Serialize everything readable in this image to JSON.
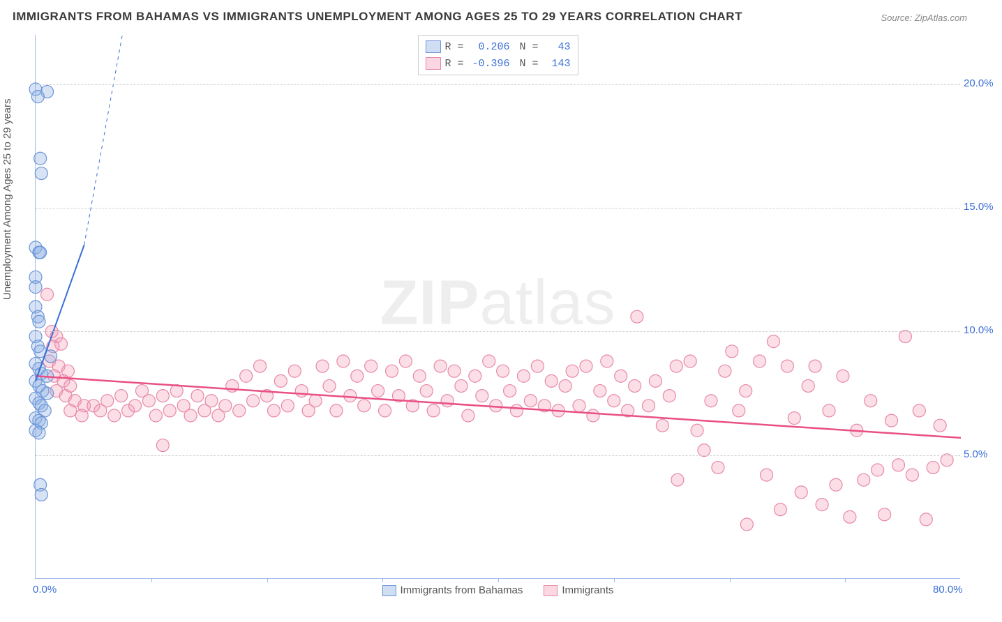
{
  "title": "IMMIGRANTS FROM BAHAMAS VS IMMIGRANTS UNEMPLOYMENT AMONG AGES 25 TO 29 YEARS CORRELATION CHART",
  "source": "Source: ZipAtlas.com",
  "ylabel": "Unemployment Among Ages 25 to 29 years",
  "watermark_zip": "ZIP",
  "watermark_atlas": "atlas",
  "chart": {
    "type": "scatter",
    "xlim": [
      0,
      80
    ],
    "ylim": [
      0,
      22
    ],
    "x_ticks_labels": [
      {
        "pos": 0,
        "label": "0.0%"
      },
      {
        "pos": 80,
        "label": "80.0%"
      }
    ],
    "x_ticks_minor": [
      10,
      20,
      30,
      40,
      50,
      60,
      70
    ],
    "y_ticks": [
      {
        "pos": 5,
        "label": "5.0%"
      },
      {
        "pos": 10,
        "label": "10.0%"
      },
      {
        "pos": 15,
        "label": "15.0%"
      },
      {
        "pos": 20,
        "label": "20.0%"
      }
    ],
    "grid_color": "#d0d0d0",
    "background_color": "#ffffff",
    "axis_color": "#9bb8e8",
    "tick_label_color": "#3b6fd6",
    "point_radius": 9,
    "point_stroke_width": 1.2,
    "series": {
      "blue": {
        "label": "Immigrants from Bahamas",
        "fill": "rgba(140,175,225,0.35)",
        "stroke": "#6a95d8",
        "R": "0.206",
        "N": "43",
        "trend": {
          "x1": 0,
          "y1": 8.0,
          "x2": 7.5,
          "y2": 22,
          "solid_until_x": 4.2,
          "solid_until_y": 13.5,
          "color": "#3b6fd6",
          "width": 2
        },
        "points": [
          [
            0.0,
            19.8
          ],
          [
            1.0,
            19.7
          ],
          [
            0.2,
            19.5
          ],
          [
            0.4,
            17.0
          ],
          [
            0.5,
            16.4
          ],
          [
            0.0,
            13.4
          ],
          [
            0.3,
            13.2
          ],
          [
            0.4,
            13.2
          ],
          [
            0.0,
            12.2
          ],
          [
            0.0,
            11.8
          ],
          [
            0.0,
            11.0
          ],
          [
            0.2,
            10.6
          ],
          [
            0.3,
            10.4
          ],
          [
            0.0,
            9.8
          ],
          [
            0.2,
            9.4
          ],
          [
            0.4,
            9.2
          ],
          [
            1.3,
            9.0
          ],
          [
            0.0,
            8.7
          ],
          [
            0.3,
            8.5
          ],
          [
            0.5,
            8.3
          ],
          [
            1.0,
            8.2
          ],
          [
            0.0,
            8.0
          ],
          [
            0.3,
            7.8
          ],
          [
            0.6,
            7.6
          ],
          [
            1.0,
            7.5
          ],
          [
            0.0,
            7.3
          ],
          [
            0.3,
            7.1
          ],
          [
            0.5,
            7.0
          ],
          [
            0.8,
            6.8
          ],
          [
            0.0,
            6.5
          ],
          [
            0.3,
            6.4
          ],
          [
            0.5,
            6.3
          ],
          [
            0.0,
            6.0
          ],
          [
            0.3,
            5.9
          ],
          [
            0.4,
            3.8
          ],
          [
            0.5,
            3.4
          ]
        ]
      },
      "pink": {
        "label": "Immigrants",
        "fill": "rgba(245,160,185,0.35)",
        "stroke": "#e688a8",
        "R": "-0.396",
        "N": "143",
        "trend": {
          "x1": 0,
          "y1": 8.2,
          "x2": 80,
          "y2": 5.7,
          "color": "#e94f85",
          "width": 2.5
        },
        "points": [
          [
            1.0,
            11.5
          ],
          [
            1.4,
            10.0
          ],
          [
            1.8,
            9.8
          ],
          [
            2.2,
            9.5
          ],
          [
            1.5,
            9.4
          ],
          [
            1.2,
            8.8
          ],
          [
            2.0,
            8.6
          ],
          [
            2.8,
            8.4
          ],
          [
            1.6,
            8.2
          ],
          [
            2.4,
            8.0
          ],
          [
            3.0,
            7.8
          ],
          [
            1.8,
            7.6
          ],
          [
            2.6,
            7.4
          ],
          [
            3.4,
            7.2
          ],
          [
            4.2,
            7.0
          ],
          [
            3.0,
            6.8
          ],
          [
            4.0,
            6.6
          ],
          [
            5.0,
            7.0
          ],
          [
            5.6,
            6.8
          ],
          [
            6.2,
            7.2
          ],
          [
            6.8,
            6.6
          ],
          [
            7.4,
            7.4
          ],
          [
            8.0,
            6.8
          ],
          [
            8.6,
            7.0
          ],
          [
            9.2,
            7.6
          ],
          [
            9.8,
            7.2
          ],
          [
            10.4,
            6.6
          ],
          [
            11.0,
            7.4
          ],
          [
            11.6,
            6.8
          ],
          [
            11.0,
            5.4
          ],
          [
            12.2,
            7.6
          ],
          [
            12.8,
            7.0
          ],
          [
            13.4,
            6.6
          ],
          [
            14.0,
            7.4
          ],
          [
            14.6,
            6.8
          ],
          [
            15.2,
            7.2
          ],
          [
            15.8,
            6.6
          ],
          [
            16.4,
            7.0
          ],
          [
            17.0,
            7.8
          ],
          [
            17.6,
            6.8
          ],
          [
            18.2,
            8.2
          ],
          [
            18.8,
            7.2
          ],
          [
            19.4,
            8.6
          ],
          [
            20.0,
            7.4
          ],
          [
            20.6,
            6.8
          ],
          [
            21.2,
            8.0
          ],
          [
            21.8,
            7.0
          ],
          [
            22.4,
            8.4
          ],
          [
            23.0,
            7.6
          ],
          [
            23.6,
            6.8
          ],
          [
            24.2,
            7.2
          ],
          [
            24.8,
            8.6
          ],
          [
            25.4,
            7.8
          ],
          [
            26.0,
            6.8
          ],
          [
            26.6,
            8.8
          ],
          [
            27.2,
            7.4
          ],
          [
            27.8,
            8.2
          ],
          [
            28.4,
            7.0
          ],
          [
            29.0,
            8.6
          ],
          [
            29.6,
            7.6
          ],
          [
            30.2,
            6.8
          ],
          [
            30.8,
            8.4
          ],
          [
            31.4,
            7.4
          ],
          [
            32.0,
            8.8
          ],
          [
            32.6,
            7.0
          ],
          [
            33.2,
            8.2
          ],
          [
            33.8,
            7.6
          ],
          [
            34.4,
            6.8
          ],
          [
            35.0,
            8.6
          ],
          [
            35.6,
            7.2
          ],
          [
            36.2,
            8.4
          ],
          [
            36.8,
            7.8
          ],
          [
            37.4,
            6.6
          ],
          [
            38.0,
            8.2
          ],
          [
            38.6,
            7.4
          ],
          [
            39.2,
            8.8
          ],
          [
            39.8,
            7.0
          ],
          [
            40.4,
            8.4
          ],
          [
            41.0,
            7.6
          ],
          [
            41.6,
            6.8
          ],
          [
            42.2,
            8.2
          ],
          [
            42.8,
            7.2
          ],
          [
            43.4,
            8.6
          ],
          [
            44.0,
            7.0
          ],
          [
            44.6,
            8.0
          ],
          [
            45.2,
            6.8
          ],
          [
            45.8,
            7.8
          ],
          [
            46.4,
            8.4
          ],
          [
            47.0,
            7.0
          ],
          [
            47.6,
            8.6
          ],
          [
            48.2,
            6.6
          ],
          [
            48.8,
            7.6
          ],
          [
            49.4,
            8.8
          ],
          [
            50.0,
            7.2
          ],
          [
            50.6,
            8.2
          ],
          [
            51.2,
            6.8
          ],
          [
            51.8,
            7.8
          ],
          [
            52,
            10.6
          ],
          [
            53.0,
            7.0
          ],
          [
            53.6,
            8.0
          ],
          [
            54.2,
            6.2
          ],
          [
            54.8,
            7.4
          ],
          [
            55.4,
            8.6
          ],
          [
            55.5,
            4.0
          ],
          [
            56.6,
            8.8
          ],
          [
            57.2,
            6.0
          ],
          [
            57.8,
            5.2
          ],
          [
            58.4,
            7.2
          ],
          [
            59.0,
            4.5
          ],
          [
            59.6,
            8.4
          ],
          [
            60.2,
            9.2
          ],
          [
            60.8,
            6.8
          ],
          [
            61.4,
            7.6
          ],
          [
            61.5,
            2.2
          ],
          [
            62.6,
            8.8
          ],
          [
            63.2,
            4.2
          ],
          [
            63.8,
            9.6
          ],
          [
            64.4,
            2.8
          ],
          [
            65.0,
            8.6
          ],
          [
            65.6,
            6.5
          ],
          [
            66.2,
            3.5
          ],
          [
            66.8,
            7.8
          ],
          [
            67.4,
            8.6
          ],
          [
            68.0,
            3.0
          ],
          [
            68.6,
            6.8
          ],
          [
            69.2,
            3.8
          ],
          [
            69.8,
            8.2
          ],
          [
            70.4,
            2.5
          ],
          [
            71.0,
            6.0
          ],
          [
            71.6,
            4.0
          ],
          [
            72.2,
            7.2
          ],
          [
            72.8,
            4.4
          ],
          [
            73.4,
            2.6
          ],
          [
            74.0,
            6.4
          ],
          [
            74.6,
            4.6
          ],
          [
            75.2,
            9.8
          ],
          [
            75.8,
            4.2
          ],
          [
            76.4,
            6.8
          ],
          [
            77.0,
            2.4
          ],
          [
            77.6,
            4.5
          ],
          [
            78.2,
            6.2
          ],
          [
            78.8,
            4.8
          ]
        ]
      }
    }
  },
  "legend_top": {
    "r_label": "R =",
    "n_label": "N ="
  }
}
